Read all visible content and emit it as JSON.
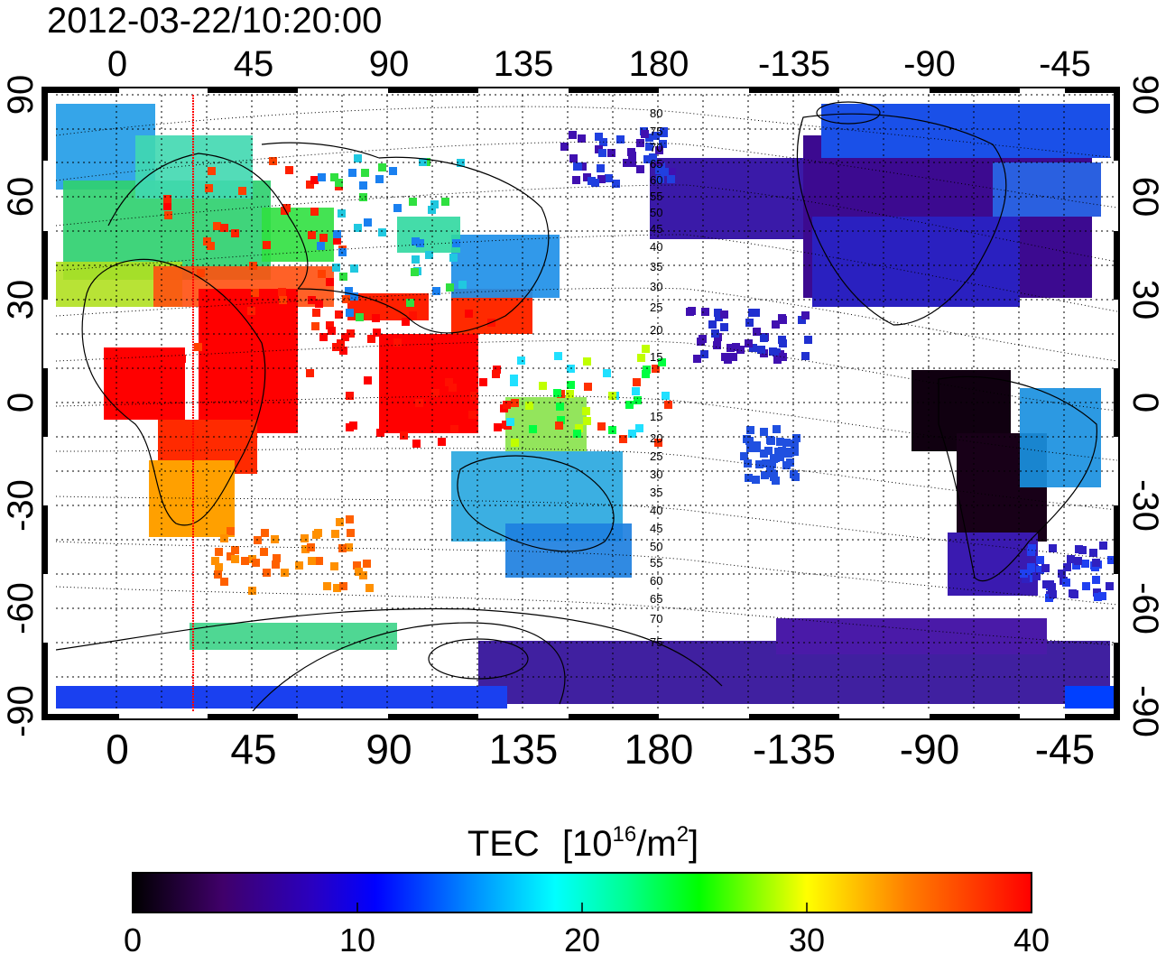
{
  "map": {
    "timestamp": "2012-03-22/10:20:00",
    "top_lon_ticks": [
      "0",
      "45",
      "90",
      "135",
      "180",
      "-135",
      "-90",
      "-45"
    ],
    "bottom_lon_ticks": [
      "0",
      "45",
      "90",
      "135",
      "180",
      "-135",
      "-90",
      "-45"
    ],
    "left_lat_ticks": [
      "90",
      "60",
      "30",
      "0",
      "-30",
      "-60",
      "-90"
    ],
    "right_lat_ticks": [
      "90",
      "60",
      "30",
      "0",
      "-30",
      "-60",
      "-90"
    ],
    "contour_labels": [
      "80",
      "75",
      "70",
      "65",
      "60",
      "55",
      "50",
      "45",
      "40",
      "35",
      "30",
      "25",
      "20",
      "15",
      "15",
      "20",
      "25",
      "30",
      "35",
      "40",
      "45",
      "50",
      "55",
      "60",
      "65",
      "70",
      "75"
    ],
    "marker_longitude": 25
  },
  "colorbar": {
    "title": "TEC",
    "unit_base": "[10",
    "unit_exp": "16",
    "unit_mid": "/m",
    "unit_exp2": "2",
    "unit_end": "]",
    "ticks": [
      "0",
      "10",
      "20",
      "30",
      "40"
    ],
    "range": [
      0,
      40
    ],
    "colors": [
      "#000000",
      "#400060",
      "#3000b0",
      "#0000ff",
      "#0080ff",
      "#00ffff",
      "#00ff80",
      "#00ff00",
      "#ffff00",
      "#ff8000",
      "#ff0000"
    ]
  }
}
